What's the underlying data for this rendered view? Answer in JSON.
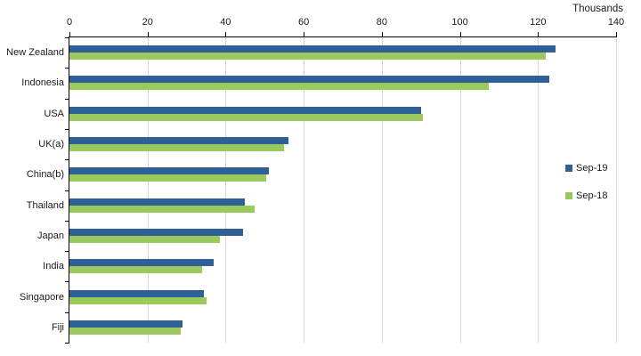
{
  "chart_data": {
    "type": "bar",
    "orientation": "horizontal",
    "title": "",
    "unit_label": "Thousands",
    "xlabel": "",
    "ylabel": "",
    "xlim": [
      0,
      140
    ],
    "x_ticks": [
      0,
      20,
      40,
      60,
      80,
      100,
      120,
      140
    ],
    "grid": true,
    "legend_position": "right",
    "categories": [
      "New Zealand",
      "Indonesia",
      "USA",
      "UK(a)",
      "China(b)",
      "Thailand",
      "Japan",
      "India",
      "Singapore",
      "Fiji"
    ],
    "series": [
      {
        "name": "Sep-19",
        "color": "#2E6096",
        "values": [
          124.5,
          123,
          90,
          56,
          51,
          45,
          44.5,
          37,
          34.5,
          29
        ]
      },
      {
        "name": "Sep-18",
        "color": "#9ACA5E",
        "values": [
          122,
          107.5,
          90.5,
          55,
          50.5,
          47.5,
          38.5,
          34,
          35,
          28.5
        ]
      }
    ]
  },
  "colors": {
    "background": "#FFFFFF",
    "gridline": "#D9D9D9",
    "axis": "#000000",
    "text": "#1A1A1A"
  }
}
